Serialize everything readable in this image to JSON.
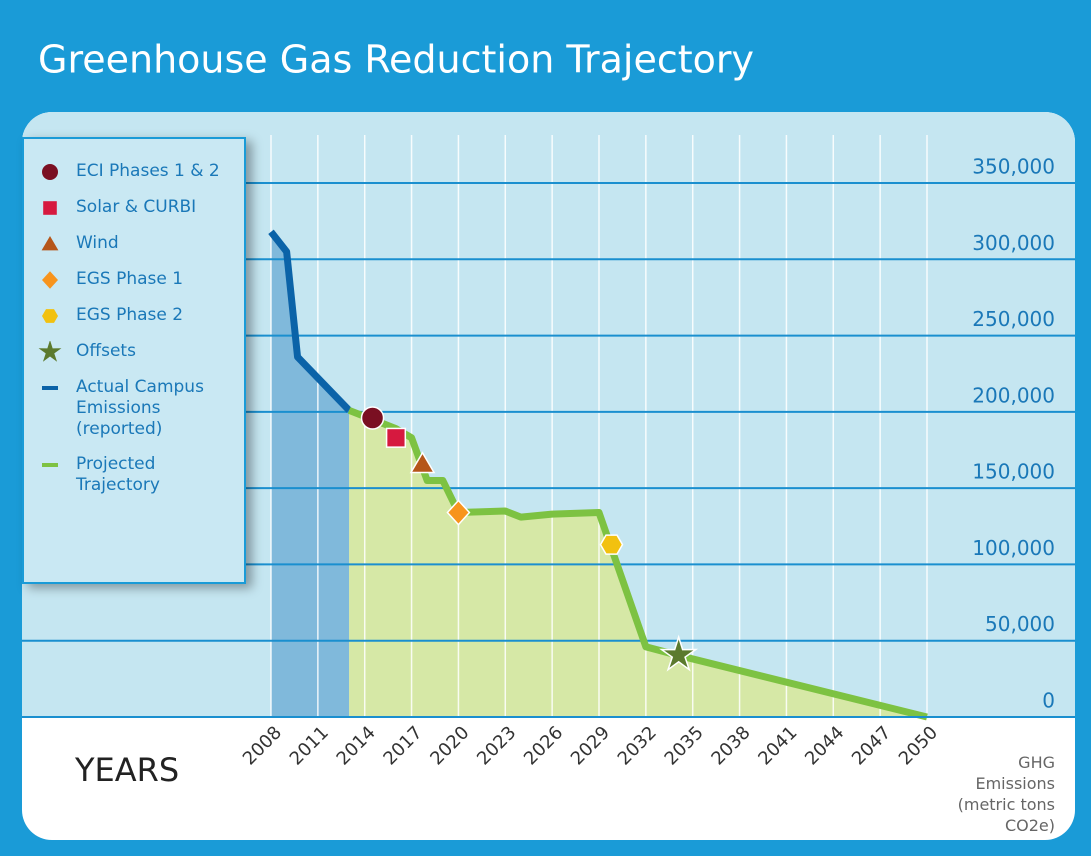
{
  "chart_data": {
    "type": "line",
    "title": "Greenhouse Gas Reduction Trajectory",
    "xlabel": "YEARS",
    "ylabel": "GHG Emissions (metric tons CO2e)",
    "xlim": [
      2008,
      2050
    ],
    "xticks": [
      2008,
      2011,
      2014,
      2017,
      2020,
      2023,
      2026,
      2029,
      2032,
      2035,
      2038,
      2041,
      2044,
      2047,
      2050
    ],
    "ylim": [
      0,
      350000
    ],
    "yticks": [
      0,
      {
        "value": 50000,
        "label": "50,000"
      },
      {
        "value": 100000,
        "label": "100,000"
      },
      {
        "value": 150000,
        "label": "150,000"
      },
      {
        "value": 200000,
        "label": "200,000"
      },
      {
        "value": 250000,
        "label": "250,000"
      },
      {
        "value": 300000,
        "label": "300,000"
      },
      {
        "value": 350000,
        "label": "350,000"
      }
    ],
    "grid": true,
    "legend": "left",
    "series": [
      {
        "name": "ECI Phases 1 & 2",
        "type": "scatter",
        "marker": "circle",
        "color": "#7a0f22",
        "x": [
          2014.5
        ],
        "values": [
          196000
        ]
      },
      {
        "name": "Solar & CURBI",
        "type": "scatter",
        "marker": "square",
        "color": "#d6193f",
        "x": [
          2016
        ],
        "values": [
          183000
        ]
      },
      {
        "name": "Wind",
        "type": "scatter",
        "marker": "triangle",
        "color": "#b5561a",
        "x": [
          2017.7
        ],
        "values": [
          166000
        ]
      },
      {
        "name": "EGS Phase 1",
        "type": "scatter",
        "marker": "diamond",
        "color": "#f7941d",
        "x": [
          2020
        ],
        "values": [
          134000
        ]
      },
      {
        "name": "EGS Phase 2",
        "type": "scatter",
        "marker": "hexagon",
        "color": "#f2c10f",
        "x": [
          2029.8
        ],
        "values": [
          113000
        ]
      },
      {
        "name": "Offsets",
        "type": "scatter",
        "marker": "star",
        "color": "#5b7a2e",
        "x": [
          2034.1
        ],
        "values": [
          40600
        ]
      },
      {
        "name": "Actual Campus Emissions (reported)",
        "type": "line",
        "color": "#0b63a8",
        "fill": "#80b9db",
        "x": [
          2008,
          2009,
          2009.7,
          2013
        ],
        "values": [
          318000,
          305000,
          236000,
          201000
        ]
      },
      {
        "name": "Projected Trajectory",
        "type": "line",
        "color": "#7dc242",
        "fill": "#d6e8a6",
        "x": [
          2013,
          2016,
          2017,
          2018,
          2019,
          2020,
          2023,
          2024,
          2026,
          2029,
          2032,
          2034,
          2050
        ],
        "values": [
          201000,
          189000,
          183000,
          155000,
          155000,
          134000,
          135000,
          131000,
          133000,
          134000,
          46000,
          40600,
          0
        ]
      }
    ]
  }
}
